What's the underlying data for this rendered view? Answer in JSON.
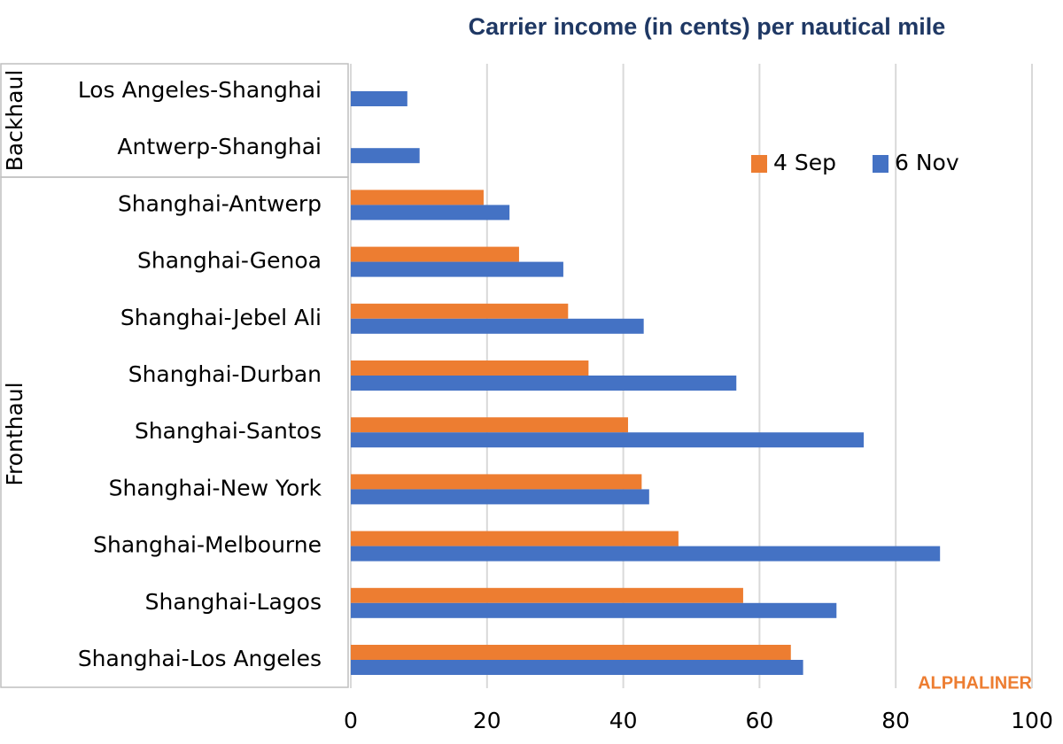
{
  "chart_data": {
    "type": "hbar",
    "title": "Carrier income (in cents) per nautical mile",
    "categories": [
      "Los Angeles-Shanghai",
      "Antwerp-Shanghai",
      "Shanghai-Antwerp",
      "Shanghai-Genoa",
      "Shanghai-Jebel Ali",
      "Shanghai-Durban",
      "Shanghai-Santos",
      "Shanghai-New York",
      "Shanghai-Melbourne",
      "Shanghai-Lagos",
      "Shanghai-Los Angeles"
    ],
    "groups": [
      "Backhaul",
      "Fronthaul"
    ],
    "series": [
      {
        "name": "4 Sep",
        "color": "#ed7d31",
        "values": [
          null,
          null,
          19.5,
          24.7,
          31.9,
          34.9,
          40.7,
          42.7,
          48.1,
          57.6,
          64.6
        ]
      },
      {
        "name": "6 Nov",
        "color": "#4472c4",
        "values": [
          8.3,
          10.1,
          23.3,
          31.2,
          43.0,
          56.6,
          75.3,
          43.8,
          86.5,
          71.3,
          66.4
        ]
      }
    ],
    "xlim": [
      0,
      100
    ],
    "xticks": [
      0,
      20,
      40,
      60,
      80,
      100
    ],
    "grid": true,
    "legend": "upper-right",
    "watermark": "ALPHALINER"
  }
}
